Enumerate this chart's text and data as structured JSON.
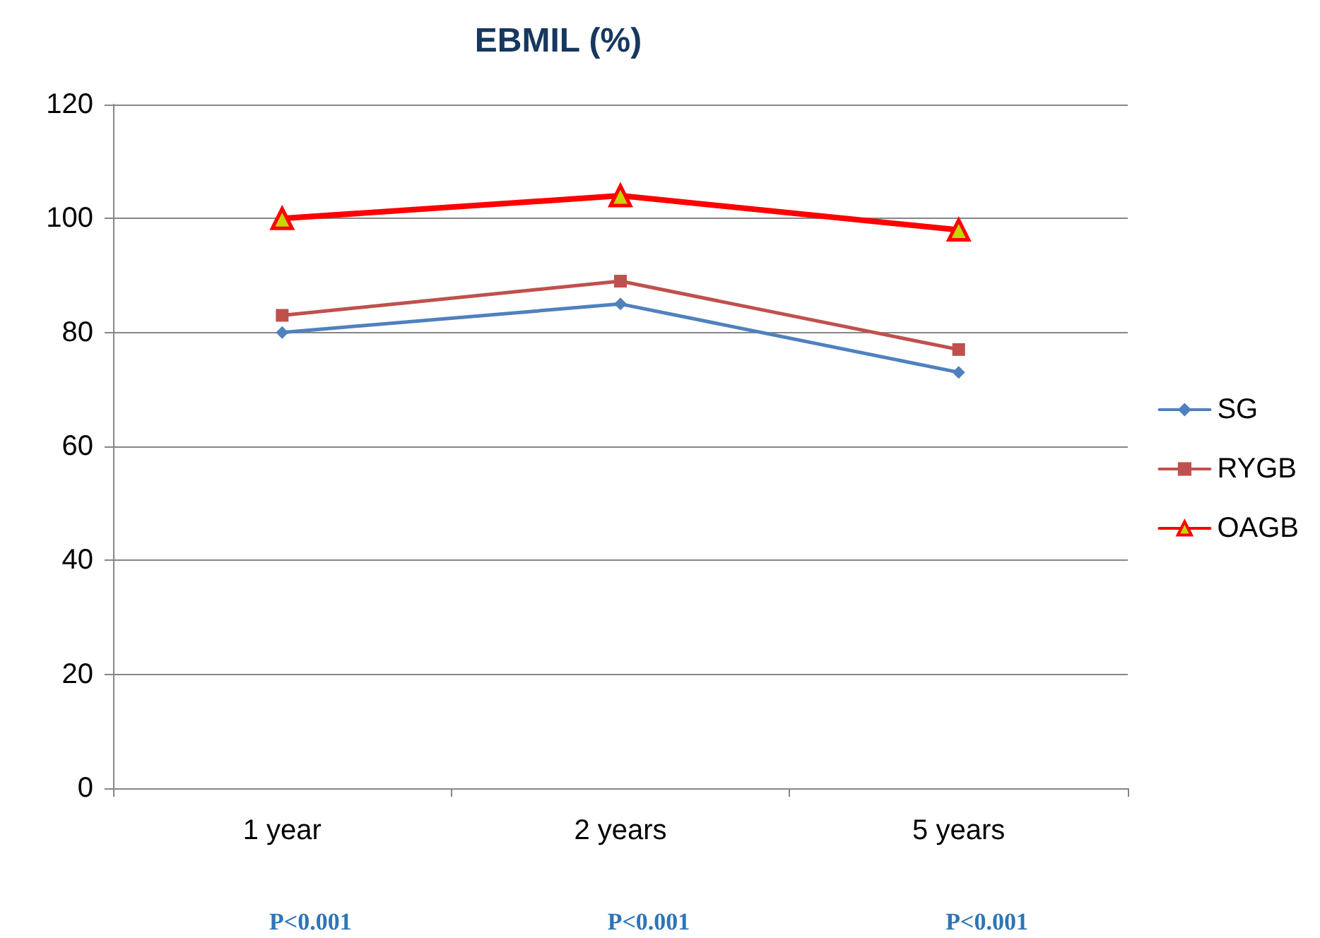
{
  "chart_data": {
    "type": "line",
    "title": "EBMIL (%)",
    "categories": [
      "1 year",
      "2 years",
      "5 years"
    ],
    "series": [
      {
        "name": "SG",
        "color": "#4f81bd",
        "values": [
          80,
          85,
          73
        ],
        "marker": "diamond"
      },
      {
        "name": "RYGB",
        "color": "#c0504d",
        "values": [
          83,
          89,
          77
        ],
        "marker": "square"
      },
      {
        "name": "OAGB",
        "color": "#ff0000",
        "values": [
          100,
          104,
          98
        ],
        "marker": "triangle"
      }
    ],
    "ylim": [
      0,
      120
    ],
    "yticks": [
      0,
      20,
      40,
      60,
      80,
      100,
      120
    ],
    "grid": "y",
    "legend": "right",
    "annotations": [
      "P<0.001",
      "P<0.001",
      "P<0.001"
    ]
  }
}
